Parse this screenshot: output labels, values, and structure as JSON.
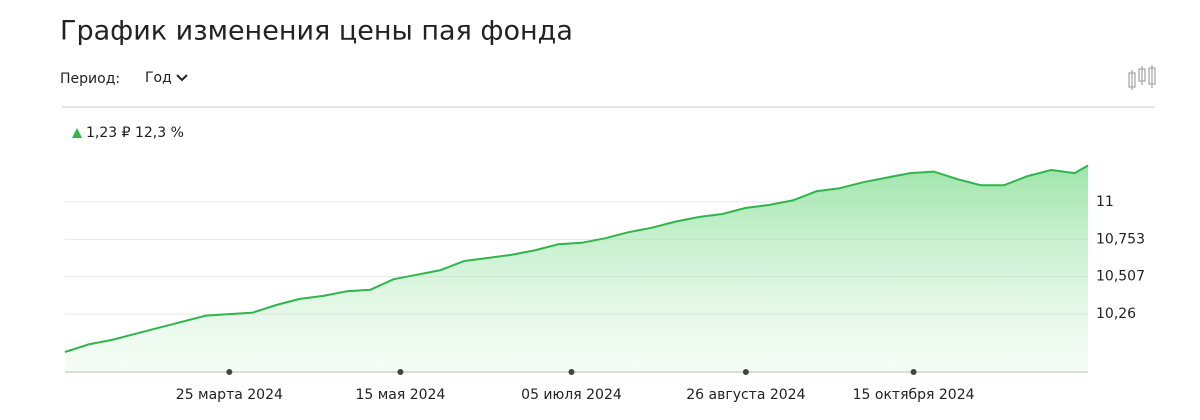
{
  "title": "График изменения цены пая фонда",
  "period_label": "Период:",
  "period_value": "Год",
  "chart_data": {
    "type": "area",
    "annotation": "1,23 ₽ 12,3 %",
    "x": [
      "2024-02-05",
      "2024-02-12",
      "2024-02-19",
      "2024-02-26",
      "2024-03-04",
      "2024-03-11",
      "2024-03-18",
      "2024-03-25",
      "2024-04-01",
      "2024-04-08",
      "2024-04-15",
      "2024-04-22",
      "2024-04-29",
      "2024-05-06",
      "2024-05-13",
      "2024-05-20",
      "2024-05-27",
      "2024-06-03",
      "2024-06-10",
      "2024-06-17",
      "2024-06-24",
      "2024-07-01",
      "2024-07-08",
      "2024-07-15",
      "2024-07-22",
      "2024-07-29",
      "2024-08-05",
      "2024-08-12",
      "2024-08-19",
      "2024-08-26",
      "2024-09-02",
      "2024-09-09",
      "2024-09-16",
      "2024-09-23",
      "2024-09-30",
      "2024-10-07",
      "2024-10-14",
      "2024-10-21",
      "2024-10-28",
      "2024-11-04",
      "2024-11-11",
      "2024-11-18",
      "2024-11-25",
      "2024-12-02",
      "2024-12-06"
    ],
    "series": [
      {
        "color": "#2fb54c",
        "values": [
          10.01,
          10.06,
          10.09,
          10.13,
          10.17,
          10.21,
          10.25,
          10.26,
          10.27,
          10.32,
          10.36,
          10.38,
          10.41,
          10.42,
          10.49,
          10.52,
          10.55,
          10.61,
          10.63,
          10.65,
          10.68,
          10.72,
          10.73,
          10.76,
          10.8,
          10.83,
          10.87,
          10.9,
          10.92,
          10.96,
          10.98,
          11.01,
          11.07,
          11.09,
          11.13,
          11.16,
          11.19,
          11.2,
          11.15,
          11.11,
          11.11,
          11.17,
          11.21,
          11.19,
          11.24
        ]
      }
    ],
    "xlim": [
      "2024-02-05",
      "2024-12-06"
    ],
    "xticks": [
      {
        "value": "2024-03-25",
        "label": "25 марта 2024"
      },
      {
        "value": "2024-05-15",
        "label": "15 мая 2024"
      },
      {
        "value": "2024-07-05",
        "label": "05 июля 2024"
      },
      {
        "value": "2024-08-26",
        "label": "26 августа 2024"
      },
      {
        "value": "2024-10-15",
        "label": "15 октября 2024"
      }
    ],
    "ylim": [
      9.878,
      11.54
    ],
    "yticks": [
      {
        "value": 10.26,
        "label": "10,26"
      },
      {
        "value": 10.507,
        "label": "10,507"
      },
      {
        "value": 10.753,
        "label": "10,753"
      },
      11
    ],
    "grid": true
  }
}
